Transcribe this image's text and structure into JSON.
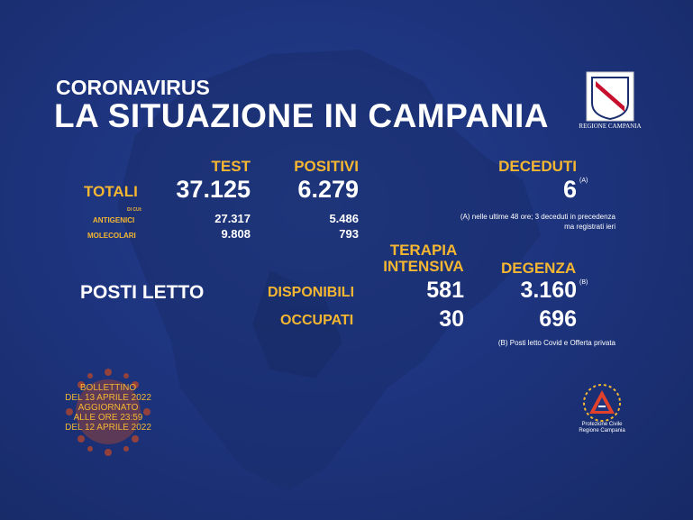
{
  "header": {
    "kicker": "CORONAVIRUS",
    "title": "LA SITUAZIONE IN CAMPANIA",
    "region_logo_text": "REGIONE CAMPANIA"
  },
  "cases": {
    "col_test": "TEST",
    "col_positivi": "POSITIVI",
    "col_deceduti": "DECEDUTI",
    "totali_label": "TOTALI",
    "totali_test": "37.125",
    "totali_positivi": "6.279",
    "deceduti_value": "6",
    "deceduti_note_mark": "(A)",
    "di_cui_label": "DI CUI:",
    "antigenici_label": "ANTIGENICI",
    "antigenici_test": "27.317",
    "antigenici_positivi": "5.486",
    "molecolari_label": "MOLECOLARI",
    "molecolari_test": "9.808",
    "molecolari_positivi": "793",
    "deceduti_footnote_line1": "(A) nelle ultime 48 ore; 3 deceduti in precedenza",
    "deceduti_footnote_line2": "ma registrati ieri"
  },
  "beds": {
    "col_ti_line1": "TERAPIA",
    "col_ti_line2": "INTENSIVA",
    "col_degenza": "DEGENZA",
    "section_label": "POSTI LETTO",
    "disponibili_label": "DISPONIBILI",
    "disponibili_ti": "581",
    "disponibili_degenza": "3.160",
    "degenza_note_mark": "(B)",
    "occupati_label": "OCCUPATI",
    "occupati_ti": "30",
    "occupati_degenza": "696",
    "degenza_footnote": "(B) Posti letto Covid e Offerta privata"
  },
  "bulletin": {
    "line1": "BOLLETTINO",
    "line2": "DEL 13 APRILE 2022",
    "line3": "AGGIORNATO",
    "line4": "ALLE ORE 23:59",
    "line5": "DEL 12 APRILE 2022"
  },
  "protezione_civile": {
    "line1": "Protezione Civile",
    "line2": "Regione Campania"
  },
  "colors": {
    "background": "#1e3580",
    "accent_yellow": "#f5b731",
    "text_white": "#ffffff",
    "map_fill": "#1a2d6c"
  }
}
